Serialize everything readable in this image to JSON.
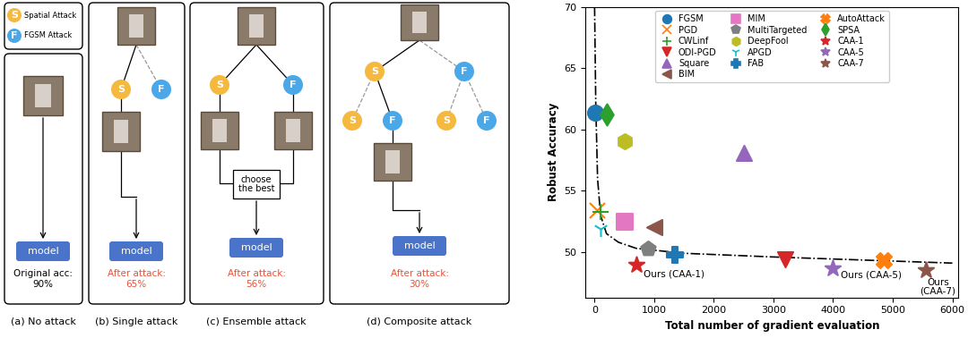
{
  "diagram": {
    "legend": [
      {
        "symbol": "S",
        "label": "Spatial Attack"
      },
      {
        "symbol": "F",
        "label": "FGSM Attack"
      }
    ],
    "panels": [
      {
        "caption": "(a) No attack",
        "model": "model",
        "result": "Original acc:",
        "accuracy": "90%"
      },
      {
        "caption": "(b) Single attack",
        "nodes": [
          "S",
          "F"
        ],
        "model": "model",
        "result": "After attack:",
        "accuracy": "65%"
      },
      {
        "caption": "(c) Ensemble attack",
        "nodes": [
          "S",
          "F"
        ],
        "choose": "choose\nthe best",
        "model": "model",
        "result": "After attack:",
        "accuracy": "56%"
      },
      {
        "caption": "(d) Composite attack",
        "nodes": [
          "S",
          "F"
        ],
        "second_nodes": [
          "S",
          "F",
          "S",
          "F"
        ],
        "model": "model",
        "result": "After attack:",
        "accuracy": "30%"
      }
    ]
  },
  "chart_data": {
    "type": "scatter",
    "x_label": "Total number of gradient evaluation",
    "y_label": "Robust Accuracy",
    "xlim": [
      -150,
      6100
    ],
    "xticks": [
      0,
      1000,
      2000,
      3000,
      4000,
      5000,
      6000
    ],
    "ylim": [
      46.3,
      70
    ],
    "yticks": [
      50,
      55,
      60,
      65,
      70
    ],
    "grid": false,
    "legend": "upper center",
    "series": [
      {
        "name": "FGSM",
        "color": "#1f77b4",
        "marker": "circle",
        "x": [
          10
        ],
        "values": [
          61.4
        ]
      },
      {
        "name": "PGD",
        "color": "#ff7f0e",
        "marker": "x",
        "x": [
          40
        ],
        "values": [
          53.4
        ]
      },
      {
        "name": "CWLinf",
        "color": "#2ca02c",
        "marker": "plus",
        "x": [
          100
        ],
        "values": [
          53.3
        ]
      },
      {
        "name": "ODI-PGD",
        "color": "#d62728",
        "marker": "triangle_down",
        "x": [
          3200
        ],
        "values": [
          49.4
        ]
      },
      {
        "name": "Square",
        "color": "#9467bd",
        "marker": "triangle_up",
        "x": [
          2500
        ],
        "values": [
          58.1
        ]
      },
      {
        "name": "BIM",
        "color": "#8c564b",
        "marker": "triangle_left",
        "x": [
          1000
        ],
        "values": [
          52.0
        ]
      },
      {
        "name": "MIM",
        "color": "#e377c2",
        "marker": "square",
        "x": [
          500
        ],
        "values": [
          52.5
        ]
      },
      {
        "name": "MultiTargeted",
        "color": "#7f7f7f",
        "marker": "pentagon",
        "x": [
          900
        ],
        "values": [
          50.3
        ]
      },
      {
        "name": "DeepFool",
        "color": "#bcbd22",
        "marker": "hexagon",
        "x": [
          500
        ],
        "values": [
          59.0
        ]
      },
      {
        "name": "APGD",
        "color": "#17becf",
        "marker": "tri_down",
        "x": [
          100
        ],
        "values": [
          51.9
        ]
      },
      {
        "name": "FAB",
        "color": "#1f77b4",
        "marker": "plus_filled",
        "x": [
          1350
        ],
        "values": [
          49.8
        ]
      },
      {
        "name": "AutoAttack",
        "color": "#ff7f0e",
        "marker": "x_filled",
        "x": [
          4850
        ],
        "values": [
          49.3
        ]
      },
      {
        "name": "SPSA",
        "color": "#2ca02c",
        "marker": "thin_diamond",
        "x": [
          200
        ],
        "values": [
          61.2
        ]
      },
      {
        "name": "CAA-1",
        "color": "#d62728",
        "marker": "star",
        "x": [
          700
        ],
        "values": [
          49.0
        ]
      },
      {
        "name": "CAA-5",
        "color": "#9467bd",
        "marker": "star",
        "x": [
          4000
        ],
        "values": [
          48.7
        ]
      },
      {
        "name": "CAA-7",
        "color": "#8c564b",
        "marker": "star",
        "x": [
          5550
        ],
        "values": [
          48.5
        ]
      }
    ],
    "frontier": {
      "color": "#000000",
      "line_style": "dashdot",
      "x": [
        0,
        20,
        50,
        100,
        200,
        400,
        700,
        1500,
        3000,
        6000
      ],
      "values": [
        70,
        62,
        56,
        53,
        51.5,
        50.8,
        50.3,
        49.9,
        49.6,
        49.1
      ]
    },
    "annotations": [
      {
        "text": "Ours (CAA-1)",
        "series": "CAA-1"
      },
      {
        "text": "Ours (CAA-5)",
        "series": "CAA-5"
      },
      {
        "text": "Ours\n(CAA-7)",
        "series": "CAA-7"
      }
    ]
  }
}
